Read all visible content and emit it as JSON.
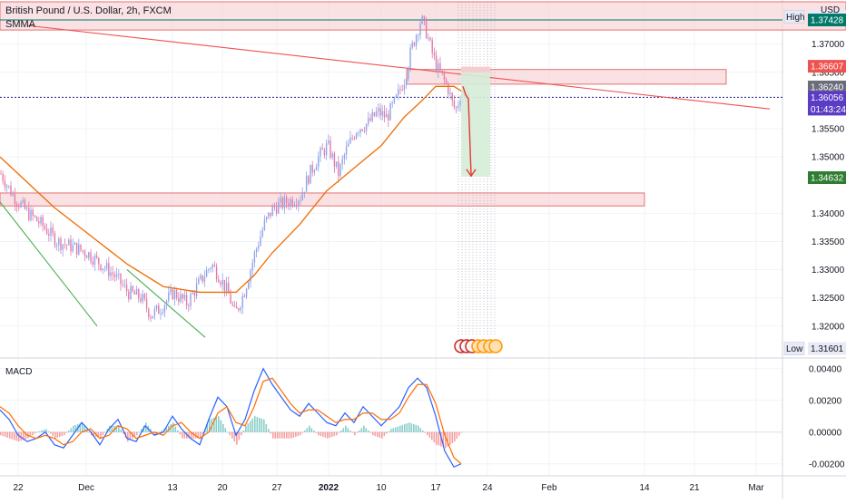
{
  "header": {
    "title": "British Pound / U.S. Dollar, 2h, FXCM",
    "indicator": "SMMA",
    "currency": "USD"
  },
  "macd_label": "MACD",
  "chart_data": {
    "type": "candlestick",
    "title": "British Pound / U.S. Dollar, 2h, FXCM",
    "price_axis": {
      "ticks": [
        "1.37000",
        "1.36500",
        "1.35500",
        "1.35000",
        "1.34000",
        "1.33500",
        "1.33000",
        "1.32500",
        "1.32000"
      ],
      "tick_values": [
        1.37,
        1.365,
        1.355,
        1.35,
        1.34,
        1.335,
        1.33,
        1.325,
        1.32
      ],
      "range": [
        1.3145,
        1.3775
      ]
    },
    "time_axis": {
      "ticks": [
        "22",
        "Dec",
        "13",
        "20",
        "27",
        "2022",
        "10",
        "17",
        "24",
        "Feb",
        "14",
        "21",
        "Mar"
      ]
    },
    "price_labels": [
      {
        "text": "High",
        "value": "1.37488",
        "kind": "high"
      },
      {
        "text": "",
        "value": "1.37428",
        "kind": "teal"
      },
      {
        "text": "",
        "value": "1.36607",
        "kind": "red"
      },
      {
        "text": "",
        "value": "1.36240",
        "kind": "gray"
      },
      {
        "text": "",
        "value": "1.36056",
        "kind": "current"
      },
      {
        "text": "",
        "value": "01:43:24",
        "kind": "countdown"
      },
      {
        "text": "",
        "value": "1.34632",
        "kind": "green"
      },
      {
        "text": "Low",
        "value": "1.31601",
        "kind": "low"
      }
    ],
    "zones": [
      {
        "name": "top-resistance",
        "from": 1.3725,
        "to": 1.3775
      },
      {
        "name": "upper-supply",
        "from": 1.3629,
        "to": 1.3655
      },
      {
        "name": "lower-demand",
        "from": 1.3413,
        "to": 1.3436
      }
    ],
    "price_series": [
      [
        0,
        1.347
      ],
      [
        14,
        1.343
      ],
      [
        30,
        1.34
      ],
      [
        45,
        1.338
      ],
      [
        62,
        1.335
      ],
      [
        80,
        1.334
      ],
      [
        95,
        1.333
      ],
      [
        110,
        1.331
      ],
      [
        125,
        1.329
      ],
      [
        140,
        1.326
      ],
      [
        155,
        1.325
      ],
      [
        165,
        1.322
      ],
      [
        175,
        1.323
      ],
      [
        190,
        1.326
      ],
      [
        205,
        1.324
      ],
      [
        220,
        1.328
      ],
      [
        232,
        1.331
      ],
      [
        240,
        1.329
      ],
      [
        250,
        1.326
      ],
      [
        258,
        1.322
      ],
      [
        268,
        1.326
      ],
      [
        280,
        1.333
      ],
      [
        290,
        1.338
      ],
      [
        300,
        1.341
      ],
      [
        315,
        1.342
      ],
      [
        330,
        1.343
      ],
      [
        340,
        1.347
      ],
      [
        350,
        1.35
      ],
      [
        360,
        1.352
      ],
      [
        372,
        1.347
      ],
      [
        380,
        1.351
      ],
      [
        392,
        1.355
      ],
      [
        405,
        1.356
      ],
      [
        415,
        1.358
      ],
      [
        425,
        1.357
      ],
      [
        435,
        1.36
      ],
      [
        445,
        1.364
      ],
      [
        452,
        1.369
      ],
      [
        458,
        1.372
      ],
      [
        463,
        1.3745
      ],
      [
        469,
        1.372
      ],
      [
        474,
        1.369
      ],
      [
        480,
        1.366
      ],
      [
        487,
        1.364
      ],
      [
        493,
        1.362
      ],
      [
        498,
        1.359
      ],
      [
        502,
        1.3585
      ],
      [
        506,
        1.361
      ],
      [
        510,
        1.3615
      ],
      [
        515,
        1.3605
      ]
    ],
    "smma_series": [
      [
        0,
        1.35
      ],
      [
        20,
        1.347
      ],
      [
        60,
        1.341
      ],
      [
        100,
        1.336
      ],
      [
        140,
        1.331
      ],
      [
        180,
        1.327
      ],
      [
        220,
        1.326
      ],
      [
        260,
        1.326
      ],
      [
        280,
        1.329
      ],
      [
        300,
        1.333
      ],
      [
        330,
        1.338
      ],
      [
        360,
        1.344
      ],
      [
        390,
        1.348
      ],
      [
        420,
        1.352
      ],
      [
        445,
        1.357
      ],
      [
        465,
        1.36
      ],
      [
        480,
        1.3625
      ],
      [
        500,
        1.3625
      ],
      [
        515,
        1.361
      ]
    ],
    "trendlines": [
      {
        "name": "descending-red",
        "from": [
          30,
          1.3733
        ],
        "to": [
          848,
          1.3585
        ],
        "color": "#ef5350"
      },
      {
        "name": "green-channel-1",
        "from": [
          0,
          1.342
        ],
        "to": [
          107,
          1.32
        ],
        "color": "#4caf50"
      },
      {
        "name": "green-channel-2",
        "from": [
          140,
          1.33
        ],
        "to": [
          226,
          1.318
        ],
        "color": "#4caf50"
      }
    ],
    "macd": {
      "ticks": [
        "0.00400",
        "0.00200",
        "0.00000",
        "-0.00200"
      ],
      "tick_values": [
        0.004,
        0.002,
        0,
        -0.002
      ],
      "range": [
        -0.0027,
        0.0045
      ],
      "macd_line": [
        [
          0,
          0.0014
        ],
        [
          10,
          0.0008
        ],
        [
          20,
          -0.0002
        ],
        [
          30,
          -0.0006
        ],
        [
          40,
          -0.0004
        ],
        [
          50,
          0.0
        ],
        [
          60,
          -0.0008
        ],
        [
          70,
          -0.001
        ],
        [
          80,
          -0.0002
        ],
        [
          90,
          0.0006
        ],
        [
          100,
          0.0
        ],
        [
          110,
          -0.0008
        ],
        [
          120,
          0.0002
        ],
        [
          130,
          0.0008
        ],
        [
          140,
          -0.0004
        ],
        [
          150,
          -0.0006
        ],
        [
          160,
          0.0004
        ],
        [
          170,
          -0.0002
        ],
        [
          180,
          0.0
        ],
        [
          190,
          0.001
        ],
        [
          200,
          0.0002
        ],
        [
          210,
          -0.0004
        ],
        [
          220,
          -0.0008
        ],
        [
          230,
          0.0008
        ],
        [
          240,
          0.0022
        ],
        [
          250,
          0.0016
        ],
        [
          260,
          -0.0002
        ],
        [
          270,
          0.0008
        ],
        [
          280,
          0.0026
        ],
        [
          290,
          0.004
        ],
        [
          300,
          0.003
        ],
        [
          310,
          0.0022
        ],
        [
          320,
          0.0014
        ],
        [
          330,
          0.001
        ],
        [
          340,
          0.0018
        ],
        [
          350,
          0.0012
        ],
        [
          360,
          0.0006
        ],
        [
          370,
          0.0004
        ],
        [
          380,
          0.0012
        ],
        [
          390,
          0.0006
        ],
        [
          400,
          0.0016
        ],
        [
          410,
          0.001
        ],
        [
          420,
          0.0004
        ],
        [
          430,
          0.001
        ],
        [
          440,
          0.0016
        ],
        [
          450,
          0.0028
        ],
        [
          460,
          0.0034
        ],
        [
          470,
          0.0028
        ],
        [
          480,
          0.001
        ],
        [
          490,
          -0.0012
        ],
        [
          500,
          -0.0022
        ],
        [
          508,
          -0.002
        ]
      ],
      "signal_line": [
        [
          0,
          0.0016
        ],
        [
          10,
          0.0012
        ],
        [
          20,
          0.0004
        ],
        [
          30,
          -0.0002
        ],
        [
          40,
          -0.0004
        ],
        [
          50,
          -0.0002
        ],
        [
          60,
          -0.0004
        ],
        [
          70,
          -0.0008
        ],
        [
          80,
          -0.0006
        ],
        [
          90,
          0.0
        ],
        [
          100,
          0.0002
        ],
        [
          110,
          -0.0004
        ],
        [
          120,
          -0.0002
        ],
        [
          130,
          0.0004
        ],
        [
          140,
          0.0002
        ],
        [
          150,
          -0.0004
        ],
        [
          160,
          -0.0002
        ],
        [
          170,
          0.0
        ],
        [
          180,
          -0.0002
        ],
        [
          190,
          0.0004
        ],
        [
          200,
          0.0006
        ],
        [
          210,
          0.0
        ],
        [
          220,
          -0.0004
        ],
        [
          230,
          0.0
        ],
        [
          240,
          0.0012
        ],
        [
          250,
          0.0016
        ],
        [
          260,
          0.0006
        ],
        [
          270,
          0.0004
        ],
        [
          280,
          0.0016
        ],
        [
          290,
          0.0032
        ],
        [
          300,
          0.0034
        ],
        [
          310,
          0.0026
        ],
        [
          320,
          0.0018
        ],
        [
          330,
          0.0012
        ],
        [
          340,
          0.0014
        ],
        [
          350,
          0.0014
        ],
        [
          360,
          0.001
        ],
        [
          370,
          0.0006
        ],
        [
          380,
          0.0008
        ],
        [
          390,
          0.0008
        ],
        [
          400,
          0.0012
        ],
        [
          410,
          0.0012
        ],
        [
          420,
          0.0008
        ],
        [
          430,
          0.0008
        ],
        [
          440,
          0.0012
        ],
        [
          450,
          0.0022
        ],
        [
          460,
          0.003
        ],
        [
          470,
          0.003
        ],
        [
          480,
          0.0018
        ],
        [
          490,
          -0.0002
        ],
        [
          500,
          -0.0016
        ],
        [
          508,
          -0.002
        ]
      ]
    },
    "colors": {
      "up": "#26a69a",
      "down": "#ef5350",
      "candle_mix": "#8fa3e8",
      "smma": "#ef6c00",
      "macd": "#2962ff",
      "signal": "#ff6d00",
      "zone_fill": "#f8d7da",
      "zone_border": "#e57373",
      "current_price": "#1e1e8c",
      "teal_line": "#00796b",
      "projection": "#d6ecd8"
    }
  }
}
